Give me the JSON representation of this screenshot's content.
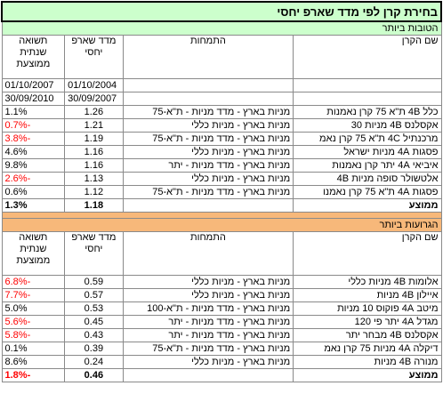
{
  "title": "בחירת קרן לפי מדד שארפ יחסי",
  "best": {
    "section_label": "הטובות ביותר",
    "headers": {
      "name": "שם הקרן",
      "spec": "התמחות",
      "sharpe": "מדד שארפ יחסי",
      "ret": "תשואה שנתית ממוצעת"
    },
    "dates": {
      "sharpe_start": "01/10/2004",
      "sharpe_end": "30/09/2007",
      "ret_start": "01/10/2007",
      "ret_end": "30/09/2010"
    },
    "rows": [
      {
        "name": "כלל 4B ת\"א 75 קרן נאמנות",
        "spec": "מניות בארץ - מדד מניות - ת\"א-75",
        "sharpe": "1.26",
        "ret": "1.1%"
      },
      {
        "name": "אקסלנס 4B מניות 30",
        "spec": "מניות בארץ - מניות כללי",
        "sharpe": "1.21",
        "ret": "-0.7%"
      },
      {
        "name": "מרכנתיל 4C ת\"א 75 קרן נאמ",
        "spec": "מניות בארץ - מדד מניות - ת\"א-75",
        "sharpe": "1.19",
        "ret": "-3.8%"
      },
      {
        "name": "פסגות 4A מניות ישראל",
        "spec": "מניות בארץ - מניות כללי",
        "sharpe": "1.16",
        "ret": "4.6%"
      },
      {
        "name": "איביאי 4A יתר קרן נאמנות",
        "spec": "מניות בארץ - מדד מניות - יתר",
        "sharpe": "1.16",
        "ret": "9.8%"
      },
      {
        "name": "אלטשולר סופה מניות 4B",
        "spec": "מניות בארץ - מניות כללי",
        "sharpe": "1.13",
        "ret": "-2.6%"
      },
      {
        "name": "פסגות 4A ת\"א 75 קרן נאמנו",
        "spec": "מניות בארץ - מדד מניות - ת\"א-75",
        "sharpe": "1.12",
        "ret": "0.6%"
      }
    ],
    "avg": {
      "label": "ממוצע",
      "sharpe": "1.18",
      "ret": "1.3%"
    }
  },
  "worst": {
    "section_label": "הגרועות ביותר",
    "headers": {
      "name": "שם הקרן",
      "spec": "התמחות",
      "sharpe": "מדד שארפ יחסי",
      "ret": "תשואה שנתית ממוצעת"
    },
    "rows": [
      {
        "name": "אלומות 4B מניות כללי",
        "spec": "מניות בארץ - מניות כללי",
        "sharpe": "0.59",
        "ret": "-6.8%"
      },
      {
        "name": "איילון 4B מניות",
        "spec": "מניות בארץ - מניות כללי",
        "sharpe": "0.57",
        "ret": "-7.7%"
      },
      {
        "name": "מיטב 4A פוקוס 10 מניות",
        "spec": "מניות בארץ - מדד מניות - ת\"א-100",
        "sharpe": "0.53",
        "ret": "5.0%"
      },
      {
        "name": "מגדל 4A יתר פי 120",
        "spec": "מניות בארץ - מדד מניות - יתר",
        "sharpe": "0.45",
        "ret": "-5.6%"
      },
      {
        "name": "אקסלנס 4B מבחר יתר",
        "spec": "מניות בארץ - מדד מניות - יתר",
        "sharpe": "0.43",
        "ret": "-5.8%"
      },
      {
        "name": "דיקלה 4A מניות 75 קרן נאמ",
        "spec": "מניות בארץ - מדד מניות - ת\"א-75",
        "sharpe": "0.39",
        "ret": "0.1%"
      },
      {
        "name": "מנורה 4B מניות",
        "spec": "מניות בארץ - מניות כללי",
        "sharpe": "0.24",
        "ret": "8.6%"
      }
    ],
    "avg": {
      "label": "ממוצע",
      "sharpe": "0.46",
      "ret": "-1.8%"
    }
  },
  "colors": {
    "best_header": "#ccffcc",
    "worst_header": "#f7b87a",
    "negative": "#ff0000"
  }
}
